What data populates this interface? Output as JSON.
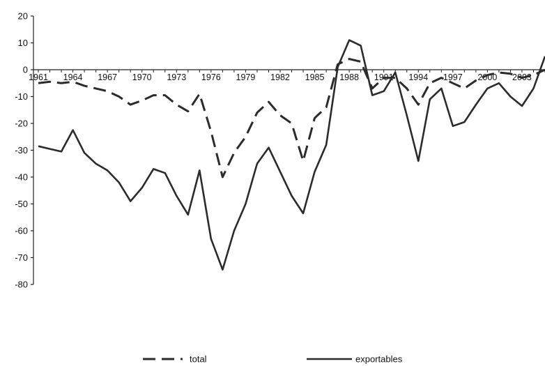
{
  "chart_data": {
    "type": "line",
    "x": [
      1961,
      1962,
      1963,
      1964,
      1965,
      1966,
      1967,
      1968,
      1969,
      1970,
      1971,
      1972,
      1973,
      1974,
      1975,
      1976,
      1977,
      1978,
      1979,
      1980,
      1981,
      1982,
      1983,
      1984,
      1985,
      1986,
      1987,
      1988,
      1989,
      1990,
      1991,
      1992,
      1993,
      1994,
      1995,
      1996,
      1997,
      1998,
      1999,
      2000,
      2001,
      2002,
      2003,
      2004,
      2005
    ],
    "x_tick_labels": [
      "1961",
      "1964",
      "1967",
      "1970",
      "1973",
      "1976",
      "1979",
      "1982",
      "1985",
      "1988",
      "1991",
      "1994",
      "1997",
      "2000",
      "2003"
    ],
    "y_tick_labels": [
      "20",
      "10",
      "0",
      "-10",
      "-20",
      "-30",
      "-40",
      "-50",
      "-60",
      "-70",
      "-80"
    ],
    "ylim": [
      -80,
      20
    ],
    "series": [
      {
        "name": "total",
        "dash": "dashed",
        "values": [
          -5,
          -4.5,
          -5,
          -4.5,
          -6,
          -7,
          -8,
          -10,
          -13,
          -11.5,
          -9.5,
          -9.5,
          -13,
          -15.5,
          -9,
          -23,
          -40,
          -31,
          -25,
          -16,
          -12,
          -17,
          -20,
          -34,
          -18,
          -14,
          2,
          4,
          3,
          -7,
          -3,
          -3,
          -7,
          -13,
          -5,
          -3,
          -5,
          -7,
          -4,
          -2,
          -1,
          -1.5,
          -3,
          -2,
          0
        ]
      },
      {
        "name": "exportables",
        "dash": "solid",
        "values": [
          -28.5,
          -29.5,
          -30.5,
          -22.5,
          -31,
          -35,
          -37.5,
          -42,
          -49,
          -44,
          -37,
          -38.5,
          -47,
          -54,
          -37.5,
          -63,
          -74.5,
          -60,
          -50,
          -35,
          -29,
          -38,
          -47,
          -53.5,
          -38,
          -28,
          1,
          11,
          9,
          -9.5,
          -8,
          -1,
          -17,
          -34,
          -11,
          -7,
          -21,
          -19.5,
          -13,
          -7,
          -5,
          -10,
          -13.5,
          -7,
          5
        ]
      }
    ],
    "legend": "bottom",
    "grid": false
  }
}
